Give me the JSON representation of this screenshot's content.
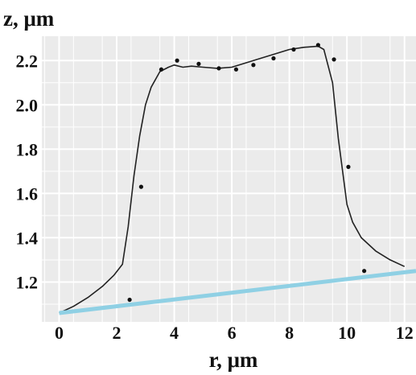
{
  "chart_data": {
    "type": "line",
    "title": "",
    "xlabel": "r, μm",
    "ylabel": "z, μm",
    "xlim": [
      -0.6,
      12.4
    ],
    "ylim": [
      1.02,
      2.31
    ],
    "x_ticks": [
      0,
      2,
      4,
      6,
      8,
      10,
      12
    ],
    "y_ticks": [
      1.2,
      1.4,
      1.6,
      1.8,
      2.0,
      2.2
    ],
    "x_tick_labels": [
      "0",
      "2",
      "4",
      "6",
      "8",
      "10",
      "12"
    ],
    "y_tick_labels": [
      "1.2",
      "1.4",
      "1.6",
      "1.8",
      "2.0",
      "2.2"
    ],
    "grid": true,
    "background": "#ebebeb",
    "grid_color": "#ffffff",
    "series": [
      {
        "kind": "line",
        "color": "#222222",
        "x": [
          0.0,
          0.5,
          1.0,
          1.5,
          1.9,
          2.2,
          2.4,
          2.6,
          2.8,
          3.0,
          3.2,
          3.5,
          3.8,
          4.0,
          4.3,
          4.6,
          5.0,
          5.5,
          6.0,
          6.5,
          7.0,
          7.5,
          8.0,
          8.5,
          9.0,
          9.2,
          9.5,
          9.7,
          10.0,
          10.2,
          10.5,
          11.0,
          11.5,
          12.0
        ],
        "y": [
          1.06,
          1.09,
          1.13,
          1.18,
          1.23,
          1.28,
          1.45,
          1.68,
          1.86,
          2.0,
          2.08,
          2.15,
          2.17,
          2.18,
          2.17,
          2.175,
          2.17,
          2.165,
          2.17,
          2.19,
          2.21,
          2.23,
          2.25,
          2.26,
          2.265,
          2.25,
          2.1,
          1.85,
          1.55,
          1.47,
          1.4,
          1.34,
          1.3,
          1.27
        ]
      },
      {
        "kind": "scatter",
        "color": "#111111",
        "x": [
          2.45,
          2.85,
          3.55,
          4.1,
          4.85,
          5.55,
          6.15,
          6.75,
          7.45,
          8.15,
          9.0,
          9.55,
          10.05,
          10.6
        ],
        "y": [
          1.12,
          1.63,
          2.16,
          2.2,
          2.185,
          2.165,
          2.16,
          2.18,
          2.21,
          2.25,
          2.27,
          2.205,
          1.72,
          1.25
        ]
      },
      {
        "kind": "line",
        "color": "#8fd0e4",
        "x": [
          0.0,
          12.4
        ],
        "y": [
          1.06,
          1.25
        ]
      }
    ]
  }
}
